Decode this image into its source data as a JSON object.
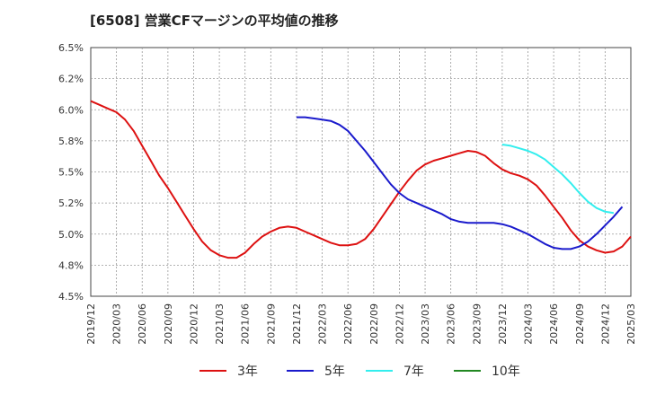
{
  "chart_data": {
    "type": "line",
    "title": "[6508]  営業CFマージンの平均値の推移",
    "y_ticks": [
      "6.5%",
      "6.2%",
      "6.0%",
      "5.8%",
      "5.5%",
      "5.2%",
      "5.0%",
      "4.8%",
      "4.5%"
    ],
    "ylim": [
      4.5,
      6.5
    ],
    "x_ticks": [
      "2019/12",
      "2020/03",
      "2020/06",
      "2020/09",
      "2020/12",
      "2021/03",
      "2021/06",
      "2021/09",
      "2021/12",
      "2022/03",
      "2022/06",
      "2022/09",
      "2022/12",
      "2023/03",
      "2023/06",
      "2023/09",
      "2023/12",
      "2024/03",
      "2024/06",
      "2024/09",
      "2024/12",
      "2025/03"
    ],
    "grid": true,
    "legend_position": "bottom",
    "series": [
      {
        "name": "3年",
        "color": "#dd1111",
        "start_index": 0,
        "values": [
          6.07,
          6.04,
          6.01,
          5.98,
          5.92,
          5.83,
          5.71,
          5.59,
          5.47,
          5.37,
          5.26,
          5.15,
          5.04,
          4.94,
          4.87,
          4.83,
          4.81,
          4.81,
          4.85,
          4.92,
          4.98,
          5.02,
          5.05,
          5.06,
          5.05,
          5.02,
          4.99,
          4.96,
          4.93,
          4.91,
          4.91,
          4.92,
          4.96,
          5.04,
          5.14,
          5.24,
          5.34,
          5.43,
          5.51,
          5.56,
          5.59,
          5.61,
          5.63,
          5.65,
          5.67,
          5.66,
          5.63,
          5.57,
          5.52,
          5.49,
          5.47,
          5.44,
          5.39,
          5.31,
          5.22,
          5.13,
          5.03,
          4.95,
          4.9,
          4.87,
          4.85,
          4.86,
          4.9,
          4.98
        ]
      },
      {
        "name": "5年",
        "color": "#1a1acc",
        "start_index": 24,
        "values": [
          5.94,
          5.94,
          5.93,
          5.92,
          5.91,
          5.88,
          5.83,
          5.75,
          5.67,
          5.58,
          5.49,
          5.4,
          5.33,
          5.28,
          5.25,
          5.22,
          5.19,
          5.16,
          5.12,
          5.1,
          5.09,
          5.09,
          5.09,
          5.09,
          5.08,
          5.06,
          5.03,
          5.0,
          4.96,
          4.92,
          4.89,
          4.88,
          4.88,
          4.9,
          4.94,
          5.0,
          5.07,
          5.14,
          5.22
        ]
      },
      {
        "name": "7年",
        "color": "#33eeee",
        "start_index": 48,
        "values": [
          5.72,
          5.71,
          5.69,
          5.67,
          5.64,
          5.6,
          5.54,
          5.48,
          5.41,
          5.33,
          5.26,
          5.21,
          5.18,
          5.17
        ]
      },
      {
        "name": "10年",
        "color": "#228822",
        "start_index": 0,
        "values": []
      }
    ]
  }
}
